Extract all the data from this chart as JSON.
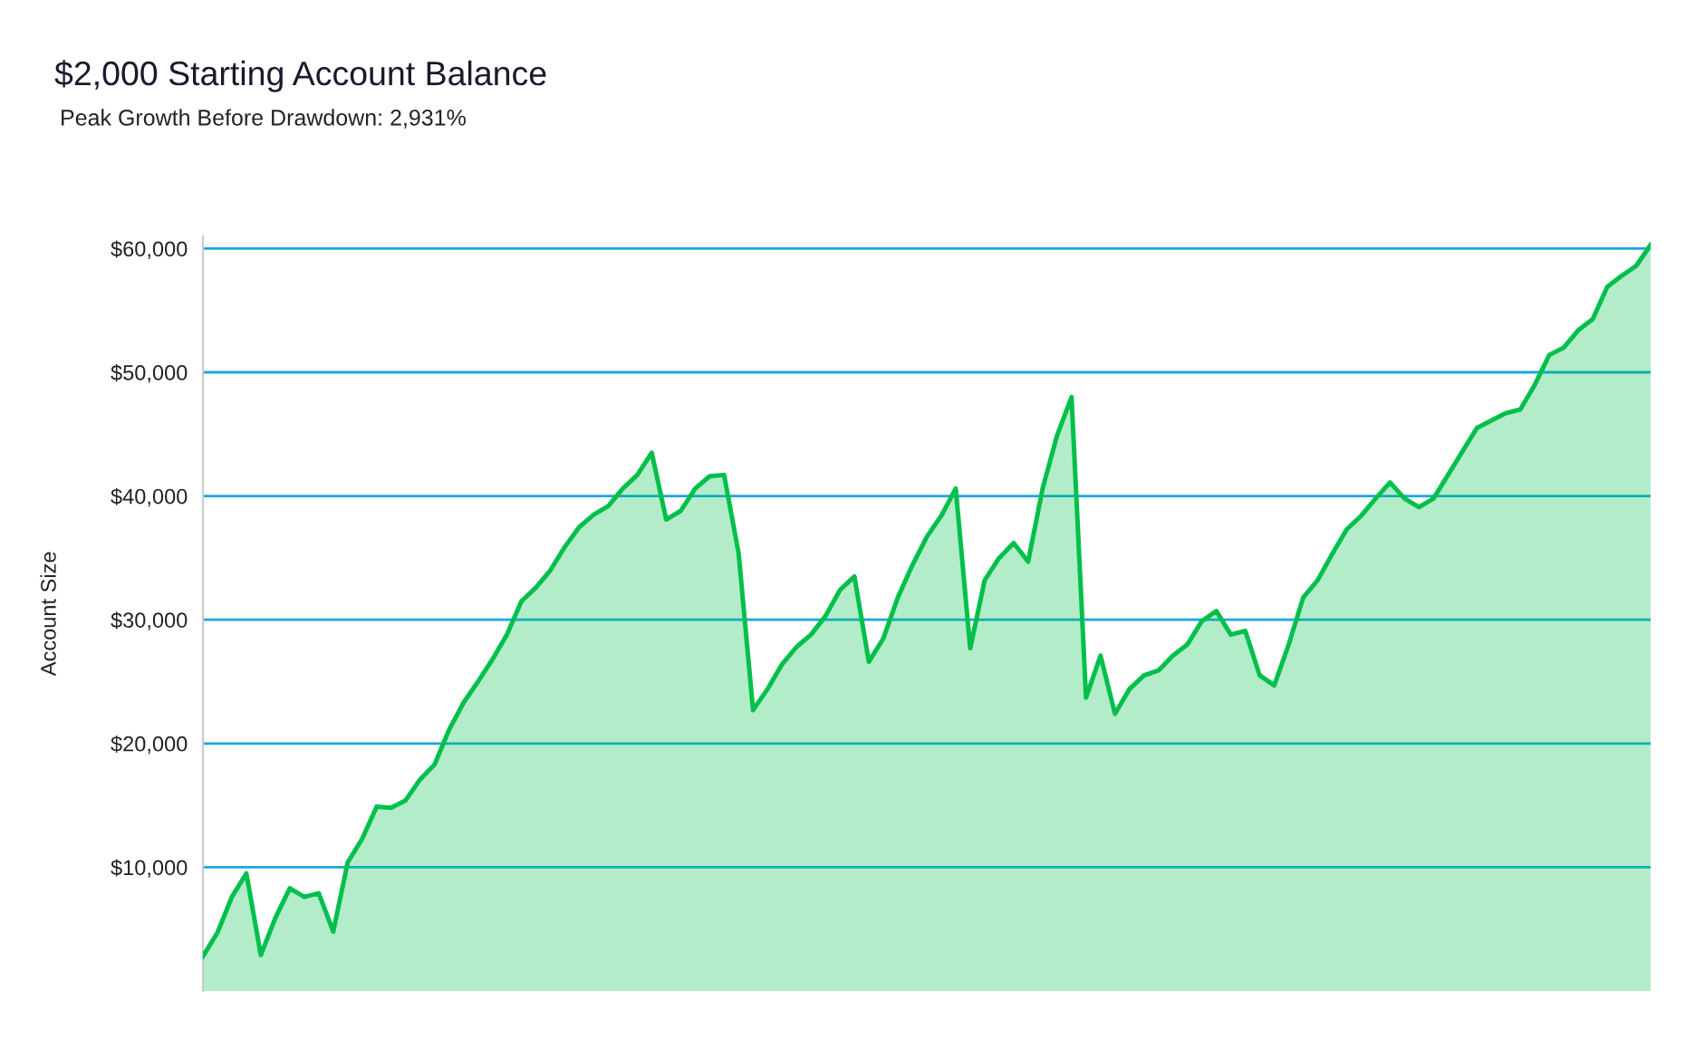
{
  "chart_data": {
    "type": "area",
    "title": "$2,000 Starting Account Balance",
    "subtitle": "Peak Growth Before Drawdown: 2,931%",
    "ylabel": "Account Size",
    "categories": [
      null,
      null,
      null,
      null,
      null,
      null,
      null,
      null,
      null,
      null,
      null,
      null,
      null,
      null,
      null,
      null,
      null,
      null,
      null,
      null,
      null,
      null,
      null,
      null,
      null,
      null,
      null,
      null,
      null,
      null,
      null,
      null,
      null,
      null,
      null,
      null,
      null,
      null,
      null,
      null,
      null,
      null,
      null,
      null,
      null,
      null,
      null,
      null,
      null,
      null,
      null,
      null,
      null,
      null,
      null,
      null,
      null,
      null,
      null,
      null,
      null,
      null,
      null,
      null,
      null,
      null,
      null,
      null,
      null,
      null,
      null,
      null,
      null,
      null,
      null,
      null,
      null,
      null,
      null,
      null,
      null,
      null,
      null,
      null,
      null,
      null,
      null,
      null,
      null,
      null,
      null,
      null,
      null,
      null,
      null,
      null,
      null,
      null,
      null,
      null,
      null
    ],
    "series": [
      {
        "color": "#00c04b",
        "values": [
          2800,
          4700,
          7600,
          9500,
          2900,
          5900,
          8300,
          7600,
          7900,
          4800,
          10400,
          12300,
          14900,
          14800,
          15400,
          17100,
          18300,
          21100,
          23300,
          25000,
          26800,
          28800,
          31500,
          32600,
          34000,
          35900,
          37500,
          38500,
          39200,
          40600,
          41700,
          43500,
          38100,
          38800,
          40600,
          41600,
          41700,
          35400,
          22700,
          24400,
          26400,
          27800,
          28800,
          30300,
          32400,
          33500,
          26600,
          28500,
          31800,
          34400,
          36700,
          38400,
          40600,
          27700,
          33200,
          35000,
          36200,
          34700,
          40600,
          44900,
          48000,
          23700,
          27100,
          22400,
          24400,
          25500,
          25900,
          27100,
          28000,
          29900,
          30700,
          28800,
          29100,
          25500,
          24700,
          28000,
          31800,
          33200,
          35300,
          37300,
          38400,
          39800,
          41100,
          39800,
          39100,
          39800,
          41700,
          43600,
          45500,
          46100,
          46700,
          47000,
          49000,
          51400,
          52000,
          53400,
          54300,
          56900,
          57800,
          58600,
          60300
        ]
      }
    ],
    "ylim": [
      0,
      61000
    ],
    "yticks": [
      {
        "value": 10000,
        "label": "$10,000"
      },
      {
        "value": 20000,
        "label": "$20,000"
      },
      {
        "value": 30000,
        "label": "$30,000"
      },
      {
        "value": 40000,
        "label": "$40,000"
      },
      {
        "value": 50000,
        "label": "$50,000"
      },
      {
        "value": 60000,
        "label": "$60,000"
      }
    ],
    "grid": "y",
    "tick_labels": "y",
    "legend": false
  }
}
